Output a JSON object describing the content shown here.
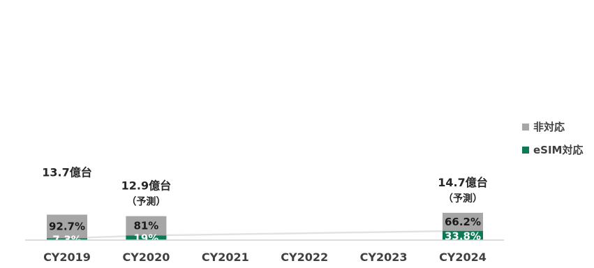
{
  "chart_data": {
    "type": "bar",
    "stacked": true,
    "categories": [
      "CY2019",
      "CY2020",
      "CY2021",
      "CY2022",
      "CY2023",
      "CY2024"
    ],
    "series": [
      {
        "name": "eSIM対応",
        "color": "#0b7a55",
        "values": [
          7.3,
          19,
          null,
          null,
          null,
          33.8
        ],
        "labels": [
          "7.3%",
          "19%",
          "",
          "",
          "",
          "33.8%"
        ]
      },
      {
        "name": "非対応",
        "color": "#a6a6a6",
        "values": [
          92.7,
          81,
          null,
          null,
          null,
          66.2
        ],
        "labels": [
          "92.7%",
          "81%",
          "",
          "",
          "",
          "66.2%"
        ]
      }
    ],
    "totals": [
      {
        "category": "CY2019",
        "label": "13.7億台",
        "note": ""
      },
      {
        "category": "CY2020",
        "label": "12.9億台",
        "note": "（予測）"
      },
      {
        "category": "CY2024",
        "label": "14.7億台",
        "note": "（予測）"
      }
    ],
    "trend_line": {
      "series": "eSIM対応",
      "color": "#e3e3e3",
      "points": [
        "CY2019",
        "CY2020",
        "CY2024"
      ]
    },
    "ylim": [
      0,
      100
    ],
    "grid": false,
    "legend": {
      "placement": "right",
      "order": [
        "非対応",
        "eSIM対応"
      ]
    }
  }
}
